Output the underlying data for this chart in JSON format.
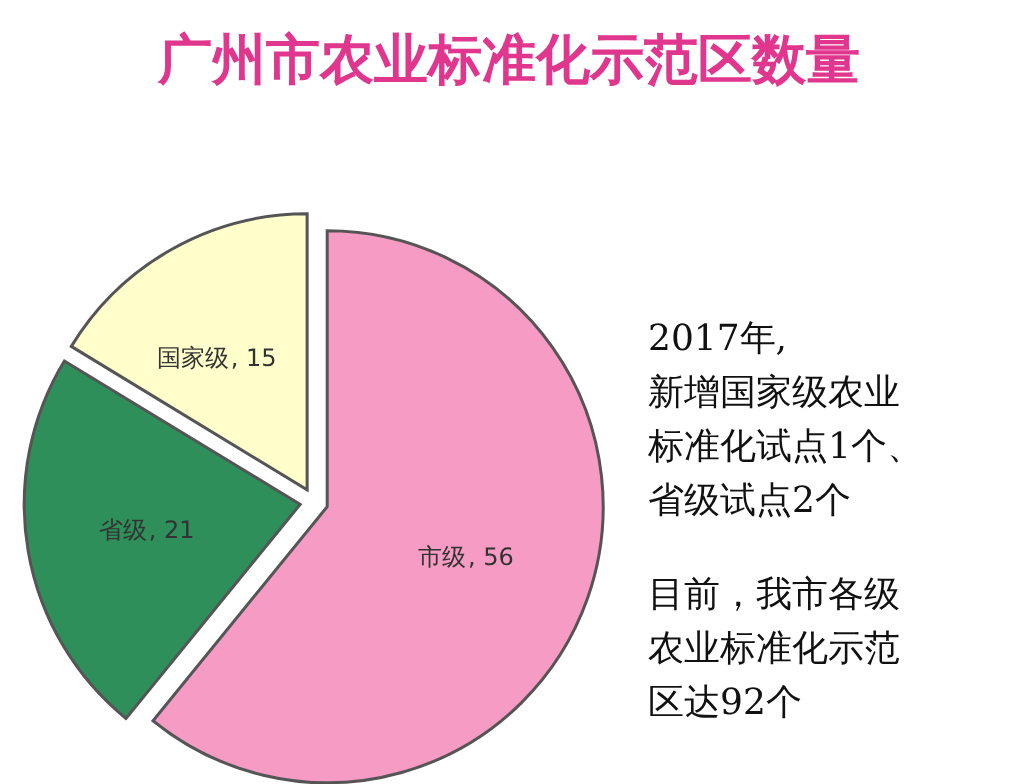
{
  "chart_data": {
    "type": "pie",
    "title": "广州市农业标准化示范区数量",
    "categories": [
      "市级",
      "省级",
      "国家级"
    ],
    "values": [
      56,
      21,
      15
    ],
    "colors": [
      "#f59bc4",
      "#2f8f5b",
      "#ffffcc"
    ],
    "value_labels": [
      ", 56",
      ", 21",
      ", 15"
    ],
    "annotations": [
      "2017年,",
      "新增国家级农业标准化试点1个、省级试点2个",
      "目前，我市各级农业标准化示范区达92个"
    ]
  }
}
